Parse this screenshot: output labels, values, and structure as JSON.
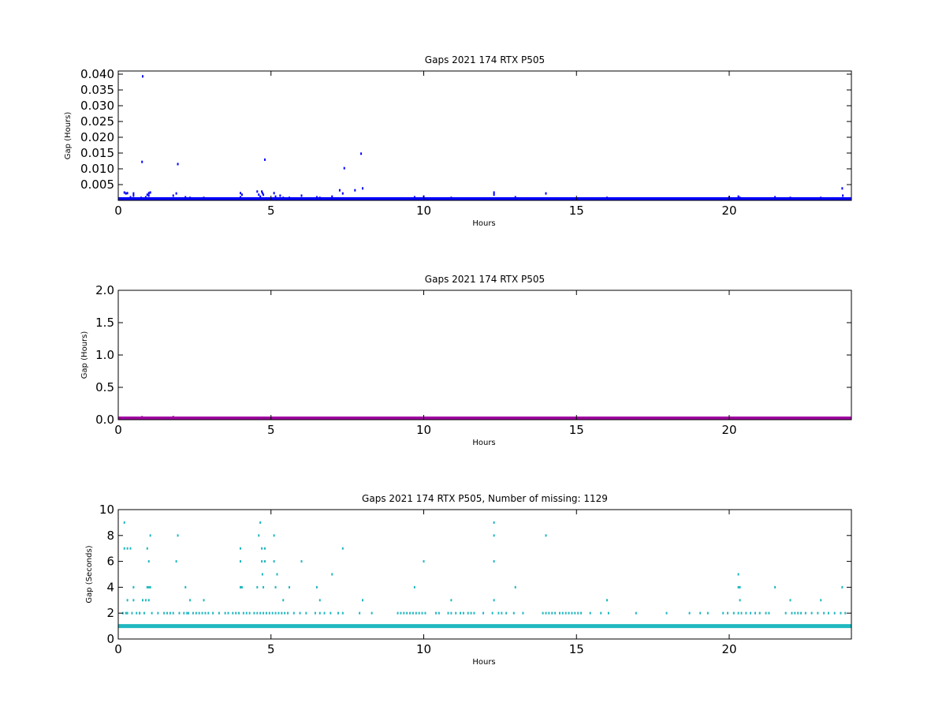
{
  "chart_data": [
    {
      "type": "scatter",
      "title": "Gaps 2021 174 RTX  P505",
      "xlabel": "Hours",
      "ylabel": "Gap (Hours)",
      "xlim": [
        0,
        24
      ],
      "ylim": [
        0,
        0.041
      ],
      "xticks": [
        "0",
        "5",
        "10",
        "15",
        "20"
      ],
      "xtick_values": [
        0,
        5,
        10,
        15,
        20
      ],
      "yticks": [
        "0.005",
        "0.010",
        "0.015",
        "0.020",
        "0.025",
        "0.030",
        "0.035",
        "0.040"
      ],
      "ytick_values": [
        0.005,
        0.01,
        0.015,
        0.02,
        0.025,
        0.03,
        0.035,
        0.04
      ],
      "grid": false,
      "color": "#0000ff",
      "baseline": {
        "y": 0.000278,
        "x_start": 0,
        "x_end": 24
      },
      "series": [
        {
          "x": [
            0.2,
            0.25,
            0.3,
            0.4,
            0.5,
            0.5,
            0.75,
            0.78,
            0.8,
            0.9,
            0.95,
            1.0,
            1.0,
            1.05,
            1.8,
            1.9,
            1.95,
            2.2,
            2.35,
            2.8,
            4.0,
            4.0,
            4.05,
            4.55,
            4.6,
            4.65,
            4.7,
            4.72,
            4.75,
            4.8,
            5.1,
            5.15,
            5.3,
            5.4,
            5.6,
            6.0,
            6.5,
            6.6,
            7.0,
            7.25,
            7.35,
            7.4,
            7.75,
            7.95,
            8.0,
            9.7,
            10.0,
            10.9,
            12.3,
            12.3,
            13.0,
            14.0,
            16.0,
            20.0,
            20.3,
            20.35,
            21.5,
            22.0,
            23.0,
            23.7,
            23.72
          ],
          "y": [
            0.0025,
            0.0022,
            0.0023,
            0.001,
            0.0015,
            0.0022,
            0.0008,
            0.0122,
            0.0393,
            0.001,
            0.0018,
            0.0015,
            0.0023,
            0.0025,
            0.0015,
            0.0022,
            0.0115,
            0.001,
            0.0008,
            0.0008,
            0.001,
            0.0023,
            0.0018,
            0.0028,
            0.0018,
            0.0012,
            0.0028,
            0.0023,
            0.0018,
            0.0129,
            0.0023,
            0.0012,
            0.0015,
            0.0008,
            0.0008,
            0.0015,
            0.001,
            0.0008,
            0.0012,
            0.0032,
            0.0022,
            0.0102,
            0.0032,
            0.0148,
            0.0038,
            0.001,
            0.0012,
            0.0008,
            0.0025,
            0.0018,
            0.001,
            0.0022,
            0.0008,
            0.001,
            0.0012,
            0.0008,
            0.001,
            0.0008,
            0.0008,
            0.0038,
            0.0015
          ]
        }
      ]
    },
    {
      "type": "scatter",
      "title": "Gaps 2021 174 RTX  P505",
      "xlabel": "Hours",
      "ylabel": "Gap (Hours)",
      "xlim": [
        0,
        24
      ],
      "ylim": [
        0,
        2.0
      ],
      "xticks": [
        "0",
        "5",
        "10",
        "15",
        "20"
      ],
      "xtick_values": [
        0,
        5,
        10,
        15,
        20
      ],
      "yticks": [
        "0.0",
        "0.5",
        "1.0",
        "1.5",
        "2.0"
      ],
      "ytick_values": [
        0.0,
        0.5,
        1.0,
        1.5,
        2.0
      ],
      "grid": false,
      "color": "#a000a0",
      "baseline": {
        "y": 0.0003,
        "x_start": 0,
        "x_end": 24
      },
      "series": [
        {
          "x": [
            0.78,
            1.8
          ],
          "y": [
            0.039,
            0.04
          ]
        }
      ]
    },
    {
      "type": "scatter",
      "title": "Gaps 2021 174 RTX  P505, Number of missing: 1129",
      "xlabel": "Hours",
      "ylabel": "Gap (Seconds)",
      "xlim": [
        0,
        24
      ],
      "ylim": [
        0,
        10
      ],
      "xticks": [
        "0",
        "5",
        "10",
        "15",
        "20"
      ],
      "xtick_values": [
        0,
        5,
        10,
        15,
        20
      ],
      "yticks": [
        "0",
        "2",
        "4",
        "6",
        "8",
        "10"
      ],
      "ytick_values": [
        0,
        2,
        4,
        6,
        8,
        10
      ],
      "grid": false,
      "color": "#20b8c0",
      "baseline": {
        "y": 1,
        "x_start": 0,
        "x_end": 24
      },
      "series": [
        {
          "x": [
            0.2,
            0.2,
            0.3,
            0.3,
            0.3,
            0.4,
            0.5,
            0.5,
            0.7,
            0.8,
            0.9,
            0.95,
            0.95,
            1.0,
            1.0,
            1.0,
            1.05,
            1.05,
            1.9,
            1.95,
            2.2,
            2.35,
            2.8,
            4.0,
            4.0,
            4.0,
            4.05,
            4.55,
            4.6,
            4.65,
            4.7,
            4.7,
            4.72,
            4.75,
            4.8,
            4.8,
            5.1,
            5.1,
            5.15,
            5.2,
            5.4,
            5.6,
            6.0,
            6.5,
            6.6,
            7.0,
            7.35,
            8.0,
            9.7,
            10.0,
            10.9,
            12.3,
            12.3,
            12.3,
            12.3,
            13.0,
            14.0,
            16.0,
            20.3,
            20.3,
            20.35,
            20.35,
            21.5,
            22.0,
            23.0,
            23.7
          ],
          "y": [
            9,
            7,
            7,
            2,
            3,
            7,
            4,
            3,
            2,
            3,
            3,
            7,
            4,
            4,
            6,
            3,
            8,
            4,
            6,
            8,
            4,
            3,
            3,
            7,
            6,
            4,
            4,
            4,
            8,
            9,
            7,
            6,
            5,
            4,
            7,
            6,
            8,
            6,
            4,
            5,
            3,
            4,
            6,
            4,
            3,
            5,
            7,
            3,
            4,
            6,
            3,
            9,
            8,
            6,
            3,
            4,
            8,
            3,
            5,
            4,
            4,
            3,
            4,
            3,
            3,
            4
          ],
          "twos_x": [
            0.15,
            0.25,
            0.45,
            0.6,
            0.7,
            0.85,
            1.1,
            1.3,
            1.5,
            1.6,
            1.7,
            1.8,
            2.0,
            2.15,
            2.25,
            2.3,
            2.45,
            2.55,
            2.65,
            2.75,
            2.85,
            2.95,
            3.1,
            3.3,
            3.5,
            3.6,
            3.75,
            3.85,
            3.95,
            4.1,
            4.2,
            4.3,
            4.45,
            4.55,
            4.65,
            4.75,
            4.85,
            4.95,
            5.05,
            5.15,
            5.25,
            5.35,
            5.45,
            5.55,
            5.75,
            5.95,
            6.15,
            6.45,
            6.6,
            6.75,
            6.95,
            7.2,
            7.35,
            7.9,
            8.3,
            9.15,
            9.25,
            9.35,
            9.45,
            9.55,
            9.65,
            9.75,
            9.85,
            9.95,
            10.05,
            10.4,
            10.5,
            10.8,
            10.9,
            11.05,
            11.2,
            11.3,
            11.45,
            11.55,
            11.65,
            11.95,
            12.25,
            12.45,
            12.55,
            12.7,
            12.95,
            13.25,
            13.9,
            14.0,
            14.1,
            14.2,
            14.3,
            14.45,
            14.55,
            14.65,
            14.75,
            14.85,
            14.95,
            15.05,
            15.15,
            15.45,
            15.8,
            16.05,
            16.95,
            17.95,
            18.7,
            19.05,
            19.3,
            19.8,
            19.95,
            20.15,
            20.3,
            20.4,
            20.55,
            20.7,
            20.85,
            21.0,
            21.2,
            21.3,
            21.85,
            22.05,
            22.15,
            22.25,
            22.35,
            22.5,
            22.7,
            22.9,
            23.1,
            23.25,
            23.45,
            23.65,
            23.8
          ]
        }
      ]
    }
  ]
}
